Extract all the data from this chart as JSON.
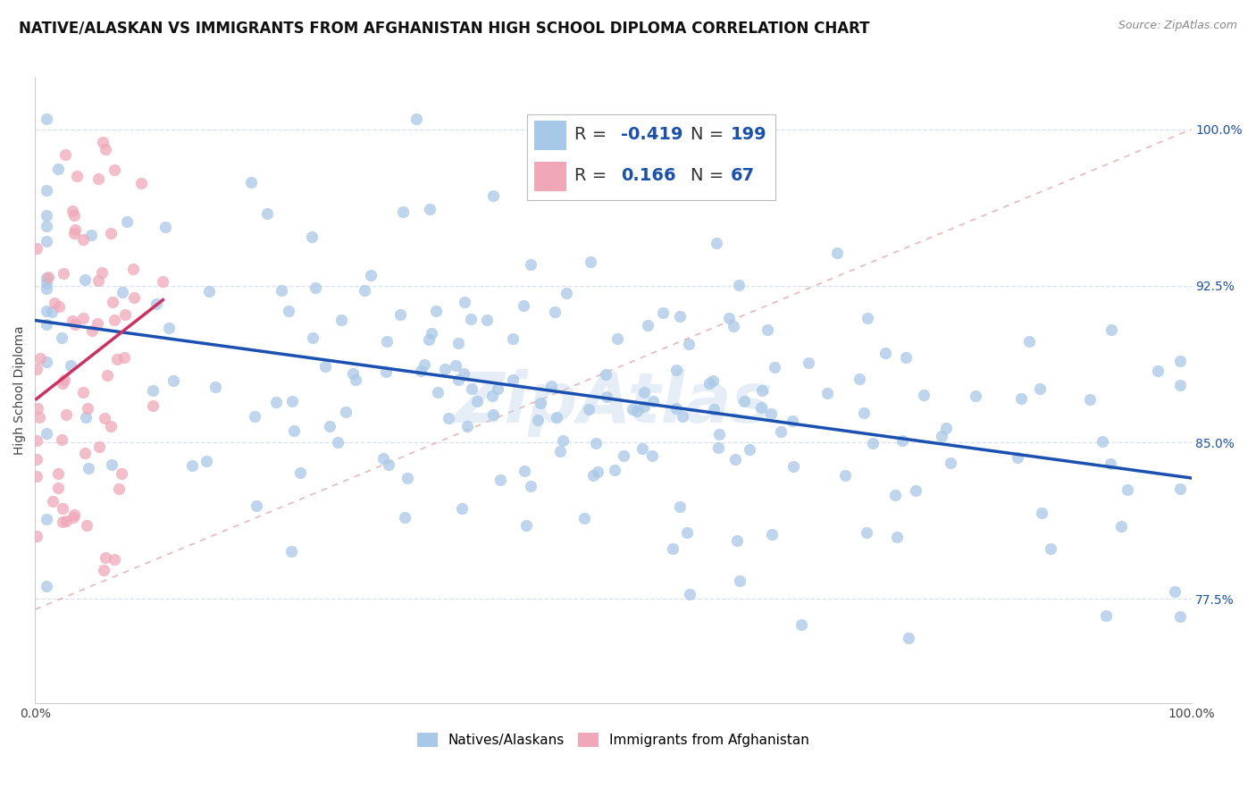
{
  "title": "NATIVE/ALASKAN VS IMMIGRANTS FROM AFGHANISTAN HIGH SCHOOL DIPLOMA CORRELATION CHART",
  "source": "Source: ZipAtlas.com",
  "ylabel": "High School Diploma",
  "yticks": [
    77.5,
    85.0,
    92.5,
    100.0
  ],
  "xlim": [
    0.0,
    1.0
  ],
  "ylim": [
    0.725,
    1.025
  ],
  "blue_R": -0.419,
  "blue_N": 199,
  "pink_R": 0.166,
  "pink_N": 67,
  "blue_color": "#a8c8e8",
  "pink_color": "#f0a8b8",
  "blue_line_color": "#1a50b0",
  "pink_line_color": "#d03060",
  "diagonal_color": "#e8b0b0",
  "watermark": "ZipAtlas",
  "legend_text_color": "#1a50b0",
  "background_color": "#ffffff",
  "grid_color": "#d8e0f0",
  "title_fontsize": 12,
  "axis_label_fontsize": 10,
  "tick_fontsize": 10,
  "legend_fontsize": 14
}
